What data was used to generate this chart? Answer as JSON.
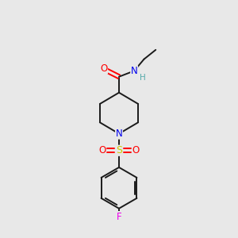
{
  "background_color": "#e8e8e8",
  "bond_color": "#1a1a1a",
  "atom_colors": {
    "O": "#ff0000",
    "N": "#0000ee",
    "H": "#55aaaa",
    "S": "#cccc00",
    "F": "#ee00ee",
    "C": "#1a1a1a"
  },
  "figsize": [
    3.0,
    3.0
  ],
  "dpi": 100
}
